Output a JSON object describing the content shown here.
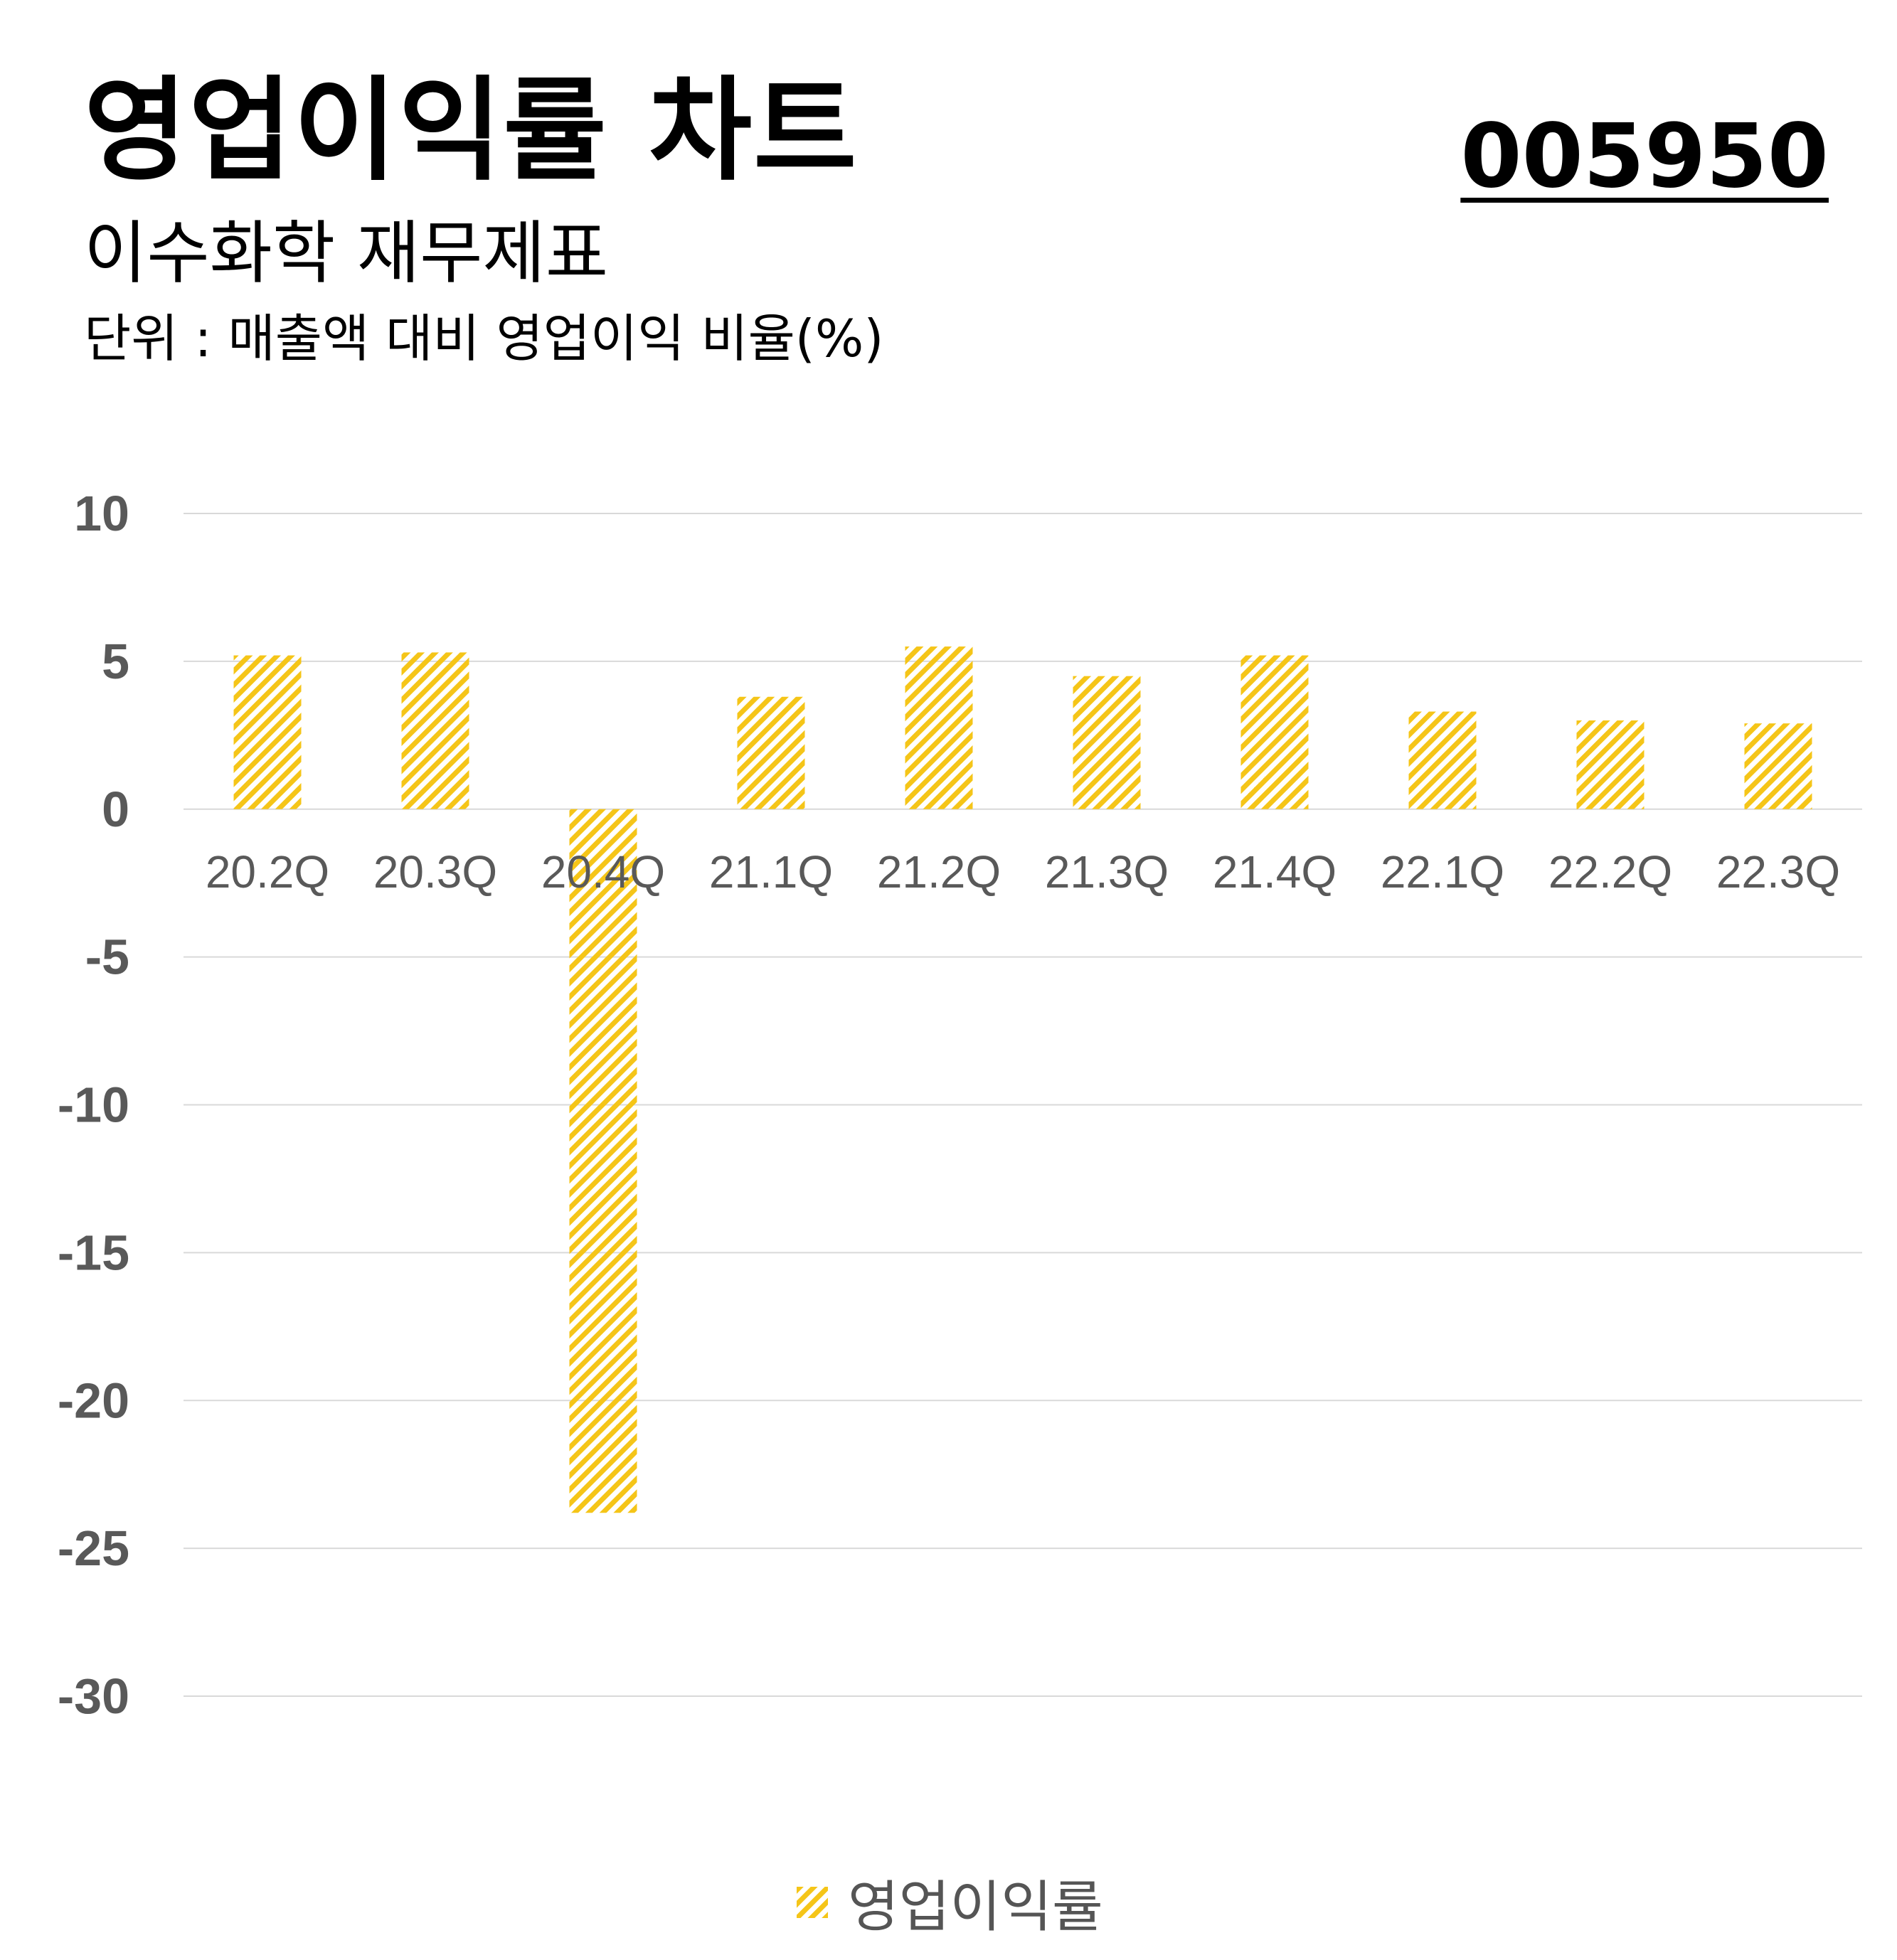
{
  "header": {
    "title": "영업이익률 차트",
    "stock_code": "005950",
    "subtitle": "이수화학 재무제표",
    "unit": "단위 : 매출액 대비 영업이익 비율(%)"
  },
  "colors": {
    "bar": "#f5c518",
    "grid": "#d9d9d9",
    "axis_text": "#595959"
  },
  "chart_data": {
    "type": "bar",
    "categories": [
      "20.2Q",
      "20.3Q",
      "20.4Q",
      "21.1Q",
      "21.2Q",
      "21.3Q",
      "21.4Q",
      "22.1Q",
      "22.2Q",
      "22.3Q"
    ],
    "series": [
      {
        "name": "영업이익률",
        "values": [
          5.2,
          5.3,
          -23.8,
          3.8,
          5.5,
          4.5,
          5.2,
          3.3,
          3.0,
          2.9
        ]
      }
    ],
    "ylim": [
      -30,
      10
    ],
    "yticks": [
      10,
      5,
      0,
      -5,
      -10,
      -15,
      -20,
      -25,
      -30
    ],
    "grid": true,
    "legend_position": "bottom-center",
    "pattern": "diagonal-hatch"
  }
}
